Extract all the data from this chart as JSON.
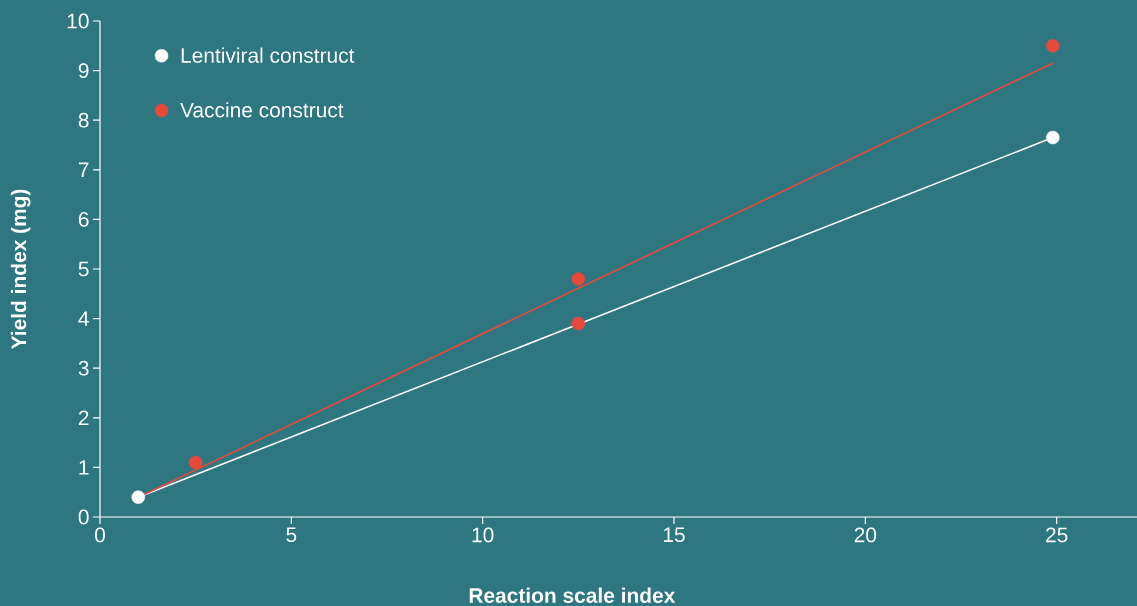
{
  "chart_data": {
    "type": "scatter",
    "xlabel": "Reaction scale index",
    "ylabel": "Yield index (mg)",
    "xlim": [
      0,
      27.1
    ],
    "ylim": [
      0,
      10
    ],
    "xticks": [
      0,
      5,
      10,
      15,
      20,
      25
    ],
    "yticks": [
      0,
      1,
      2,
      3,
      4,
      5,
      6,
      7,
      8,
      9,
      10
    ],
    "grid": false,
    "legend": "top left",
    "marker": "circle",
    "series": [
      {
        "type": "line",
        "marker": "none",
        "color": "#ffffff",
        "x": [
          1,
          24.9
        ],
        "values": [
          0.4,
          7.65
        ]
      },
      {
        "type": "line",
        "marker": "none",
        "color": "#e8483a",
        "x": [
          1,
          24.9
        ],
        "values": [
          0.4,
          9.15
        ]
      },
      {
        "name": "Lentiviral construct",
        "color": "#ffffff",
        "x": [
          1,
          24.9
        ],
        "values": [
          0.4,
          7.65
        ]
      },
      {
        "name": "Vaccine construct",
        "color": "#e8483a",
        "x": [
          2.5,
          12.5,
          12.5,
          24.9
        ],
        "values": [
          1.1,
          4.8,
          3.9,
          9.5
        ]
      }
    ]
  }
}
